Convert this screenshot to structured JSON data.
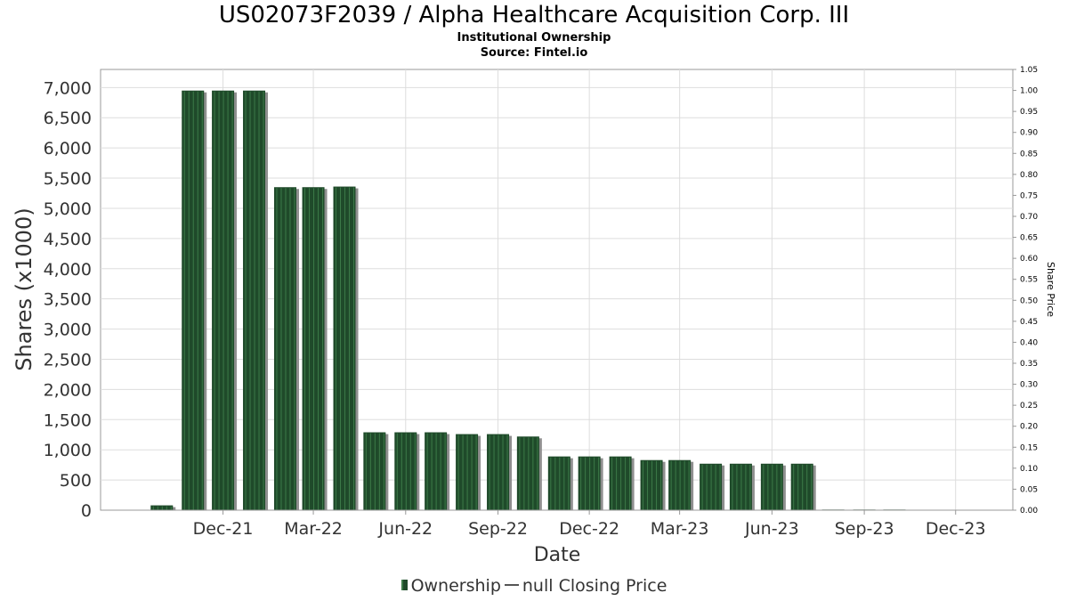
{
  "header": {
    "title": "US02073F2039 / Alpha Healthcare Acquisition Corp. III",
    "subtitle": "Institutional Ownership",
    "source": "Source: Fintel.io"
  },
  "legend": {
    "ownership": "Ownership",
    "price": "null Closing Price"
  },
  "colors": {
    "bar_fill": "#1f4a2a",
    "bar_stripe": "#3c7a48",
    "bar_shadow": "#8f8f8f",
    "grid": "#dddddd"
  },
  "chart_data": {
    "type": "bar",
    "xlabel": "Date",
    "ylabel": "Shares (x1000)",
    "y2label": "Share Price",
    "ylim": [
      0,
      7300
    ],
    "y2lim": [
      0,
      1.05
    ],
    "yticks": [
      0,
      500,
      1000,
      1500,
      2000,
      2500,
      3000,
      3500,
      4000,
      4500,
      5000,
      5500,
      6000,
      6500,
      7000
    ],
    "ytick_labels": [
      "0",
      "500",
      "1,000",
      "1,500",
      "2,000",
      "2,500",
      "3,000",
      "3,500",
      "4,000",
      "4,500",
      "5,000",
      "5,500",
      "6,000",
      "6,500",
      "7,000"
    ],
    "y2tick_labels": [
      "0.00",
      "0.05",
      "0.10",
      "0.15",
      "0.20",
      "0.25",
      "0.30",
      "0.35",
      "0.40",
      "0.45",
      "0.50",
      "0.55",
      "0.60",
      "0.65",
      "0.70",
      "0.75",
      "0.80",
      "0.85",
      "0.90",
      "0.95",
      "1.00",
      "1.05"
    ],
    "xticks": [
      "Dec-21",
      "Mar-22",
      "Jun-22",
      "Sep-22",
      "Dec-22",
      "Mar-23",
      "Jun-23",
      "Sep-23",
      "Dec-23"
    ],
    "x_range": [
      "2021-08-15",
      "2024-02-10"
    ],
    "grid": true,
    "legend_position": "bottom-center",
    "series": [
      {
        "name": "Ownership",
        "x": [
          "2021-10-15",
          "2021-11-15",
          "2021-12-15",
          "2022-01-15",
          "2022-02-15",
          "2022-03-15",
          "2022-04-15",
          "2022-05-15",
          "2022-06-15",
          "2022-07-15",
          "2022-08-15",
          "2022-09-15",
          "2022-10-15",
          "2022-11-15",
          "2022-12-15",
          "2023-01-15",
          "2023-02-15",
          "2023-03-15",
          "2023-04-15",
          "2023-05-15",
          "2023-06-15",
          "2023-07-15",
          "2023-08-15",
          "2023-09-15",
          "2023-10-15",
          "2023-11-15"
        ],
        "values": [
          80,
          6950,
          6950,
          6950,
          5350,
          5350,
          5360,
          1290,
          1290,
          1290,
          1260,
          1260,
          1220,
          890,
          890,
          890,
          830,
          830,
          770,
          770,
          770,
          770,
          10,
          10,
          10,
          0
        ]
      }
    ]
  }
}
